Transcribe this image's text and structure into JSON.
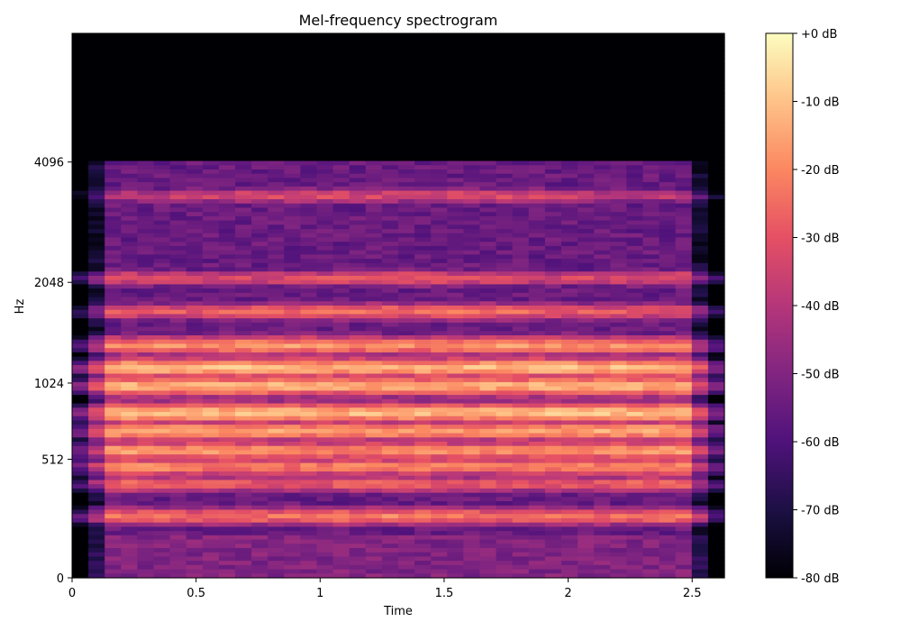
{
  "chart_data": {
    "type": "heatmap",
    "title": "Mel-frequency spectrogram",
    "xlabel": "Time",
    "ylabel": "Hz",
    "xlim": [
      0,
      2.63
    ],
    "y_scale": "mel",
    "ylim_hz": [
      0,
      8000
    ],
    "x_ticks": [
      {
        "value": 0,
        "label": "0"
      },
      {
        "value": 0.5,
        "label": "0.5"
      },
      {
        "value": 1,
        "label": "1"
      },
      {
        "value": 1.5,
        "label": "1.5"
      },
      {
        "value": 2,
        "label": "2"
      },
      {
        "value": 2.5,
        "label": "2.5"
      }
    ],
    "y_ticks": [
      {
        "value": 0,
        "label": "0"
      },
      {
        "value": 512,
        "label": "512"
      },
      {
        "value": 1024,
        "label": "1024"
      },
      {
        "value": 2048,
        "label": "2048"
      },
      {
        "value": 4096,
        "label": "4096"
      }
    ],
    "colorbar": {
      "colormap": "magma",
      "range_db": [
        -80,
        0
      ],
      "ticks": [
        {
          "value": 0,
          "label": "+0 dB"
        },
        {
          "value": -10,
          "label": "-10 dB"
        },
        {
          "value": -20,
          "label": "-20 dB"
        },
        {
          "value": -30,
          "label": "-30 dB"
        },
        {
          "value": -40,
          "label": "-40 dB"
        },
        {
          "value": -50,
          "label": "-50 dB"
        },
        {
          "value": -60,
          "label": "-60 dB"
        },
        {
          "value": -70,
          "label": "-70 dB"
        },
        {
          "value": -80,
          "label": "-80 dB"
        }
      ]
    },
    "grid": false,
    "n_time_frames": 40,
    "n_mel_bins": 128,
    "content_cutoff_hz": 4100,
    "energy_bands_hz": [
      {
        "center": 230,
        "level_db": -18
      },
      {
        "center": 380,
        "level_db": -22
      },
      {
        "center": 470,
        "level_db": -16
      },
      {
        "center": 560,
        "level_db": -14
      },
      {
        "center": 680,
        "level_db": -12
      },
      {
        "center": 800,
        "level_db": -8
      },
      {
        "center": 1000,
        "level_db": -10
      },
      {
        "center": 1150,
        "level_db": -9
      },
      {
        "center": 1350,
        "level_db": -15
      },
      {
        "center": 1700,
        "level_db": -22
      },
      {
        "center": 2100,
        "level_db": -25
      },
      {
        "center": 3400,
        "level_db": -30
      }
    ]
  }
}
